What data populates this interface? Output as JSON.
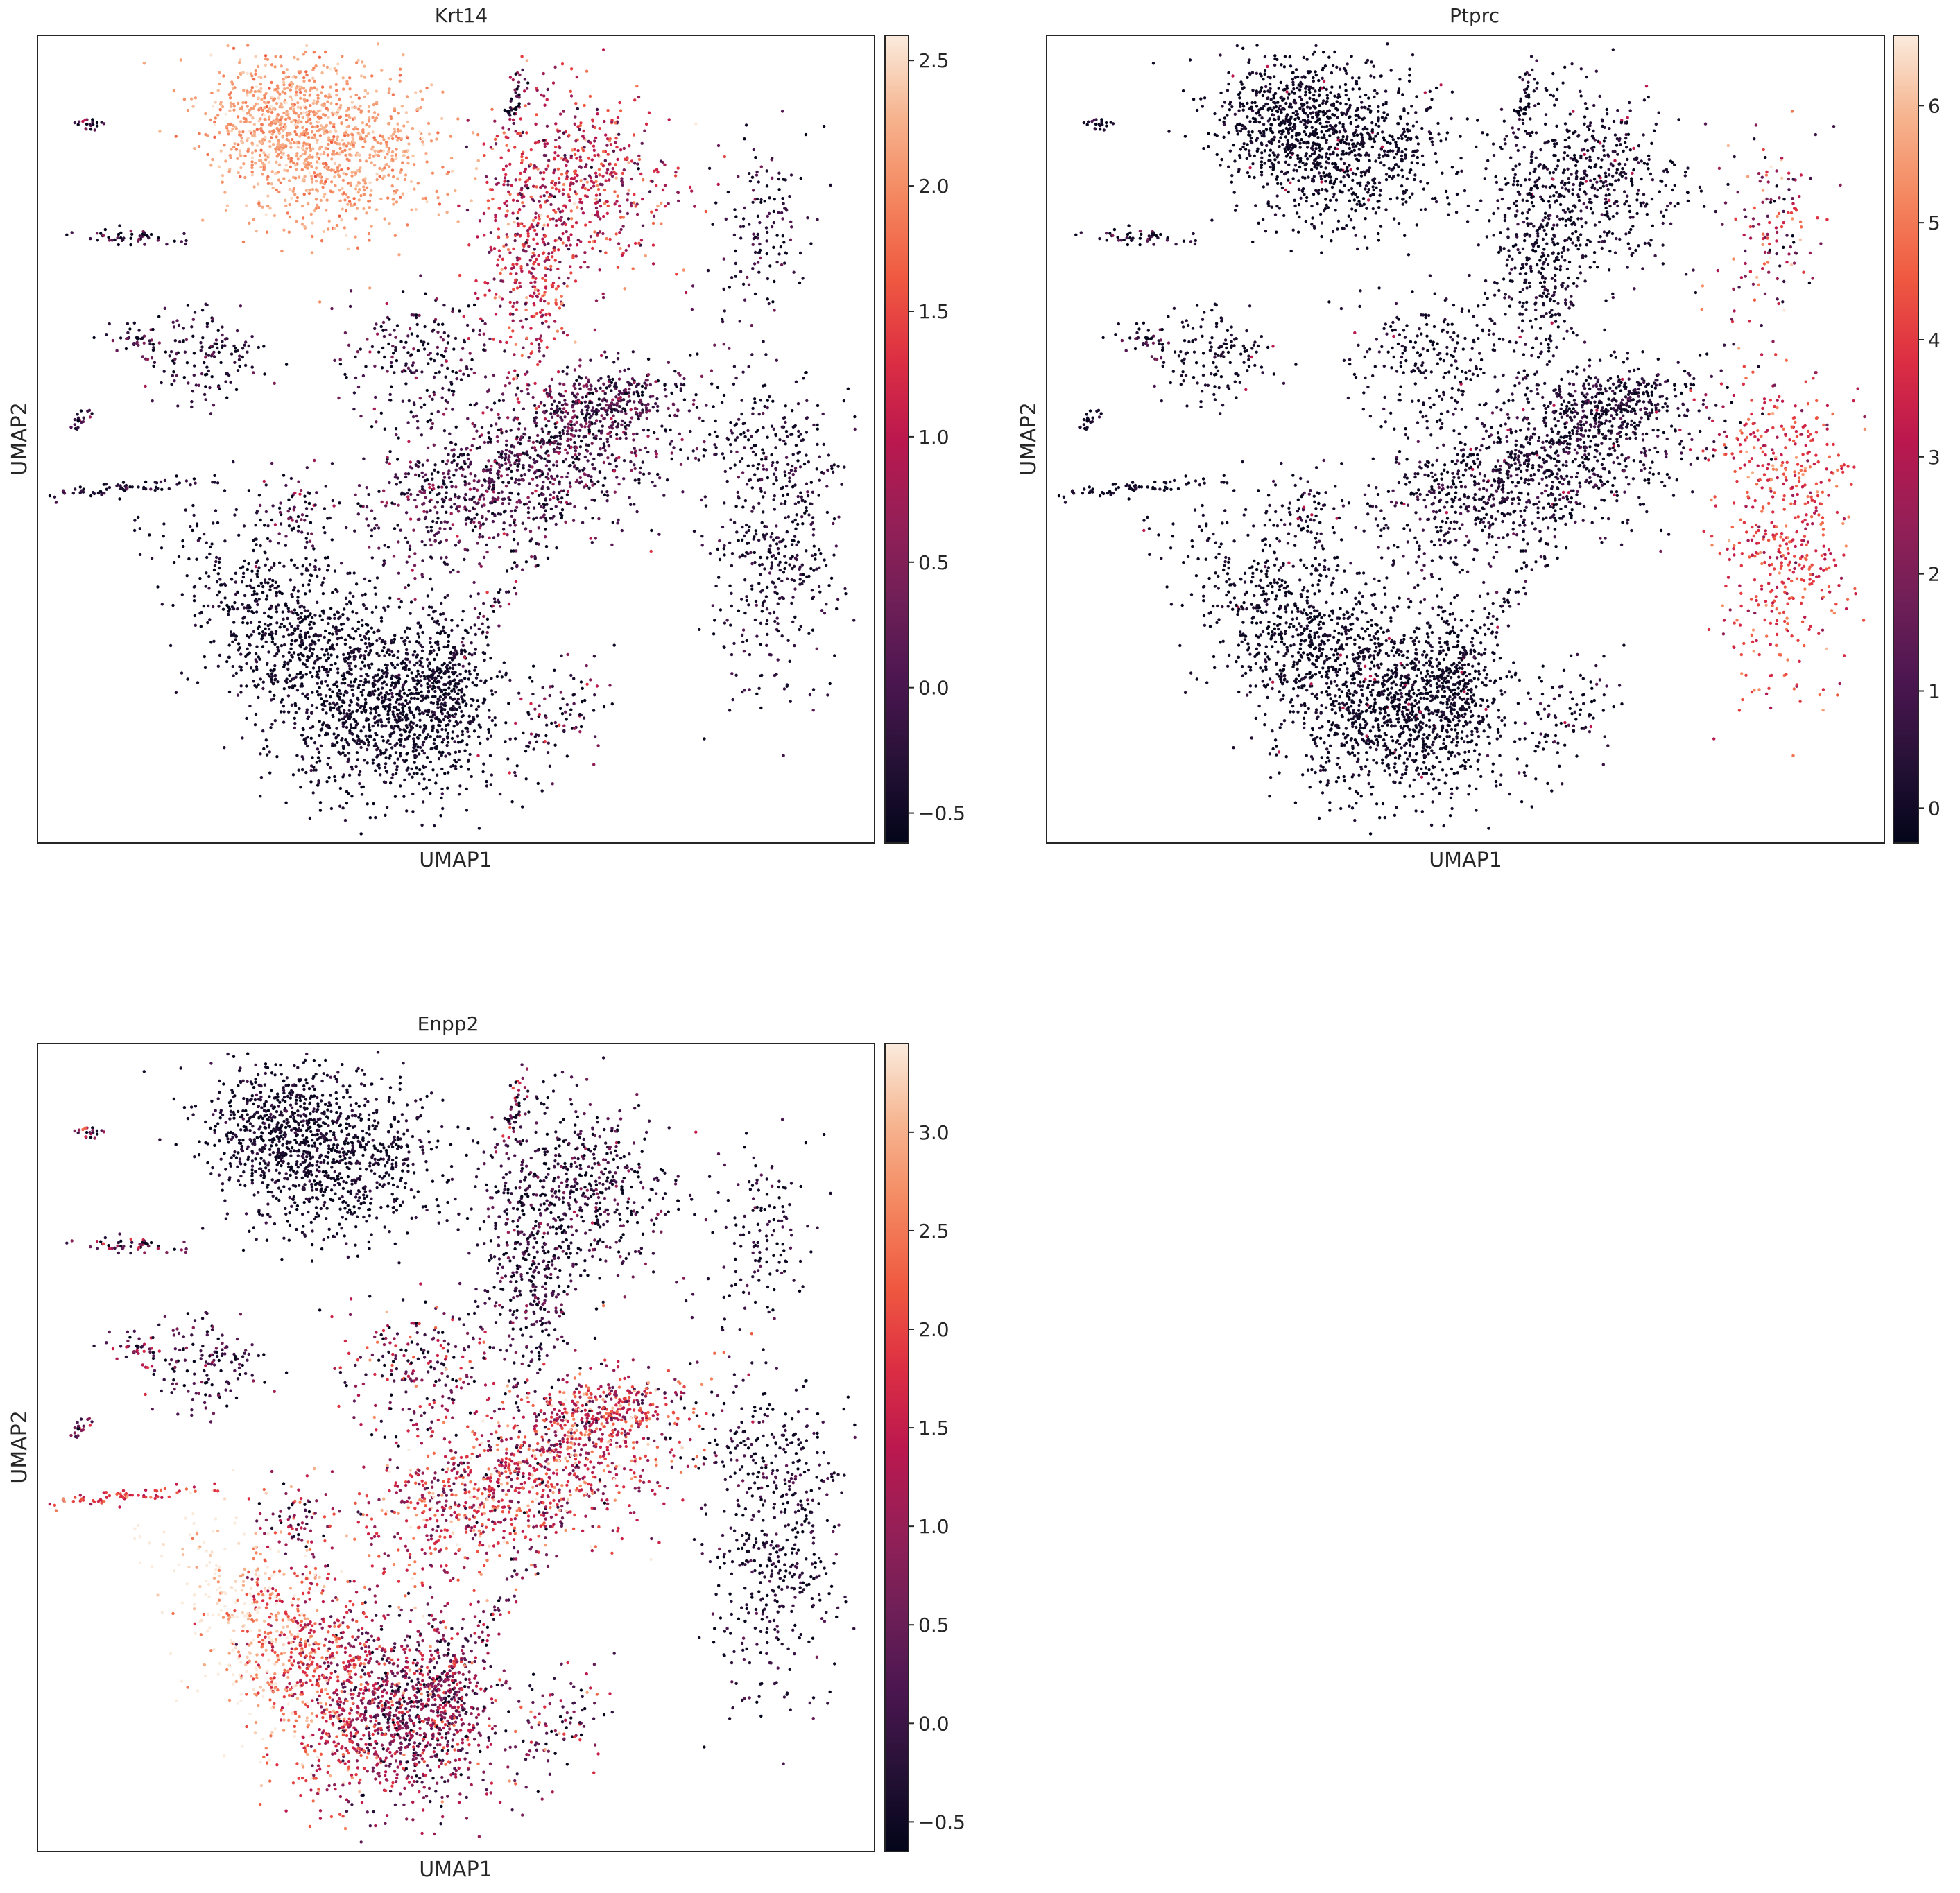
{
  "chart_data": [
    {
      "type": "scatter",
      "title": "Krt14",
      "xlabel": "UMAP1",
      "ylabel": "UMAP2",
      "colorbar": {
        "colormap": "rocket",
        "vmin": -0.62,
        "vmax": 2.6,
        "ticks": [
          -0.5,
          0.0,
          0.5,
          1.0,
          1.5,
          2.0,
          2.5
        ],
        "tick_labels": [
          "−0.5",
          "0.0",
          "0.5",
          "1.0",
          "1.5",
          "2.0",
          "2.5"
        ]
      },
      "high_expression_clusters": [
        "top-left epithelial cluster",
        "upper-central cluster (moderate)"
      ]
    },
    {
      "type": "scatter",
      "title": "Ptprc",
      "xlabel": "UMAP1",
      "ylabel": "UMAP2",
      "colorbar": {
        "colormap": "rocket",
        "vmin": -0.3,
        "vmax": 6.6,
        "ticks": [
          0,
          1,
          2,
          3,
          4,
          5,
          6
        ],
        "tick_labels": [
          "0",
          "1",
          "2",
          "3",
          "4",
          "5",
          "6"
        ]
      },
      "high_expression_clusters": [
        "right immune cluster",
        "right-side small streaks"
      ]
    },
    {
      "type": "scatter",
      "title": "Enpp2",
      "xlabel": "UMAP1",
      "ylabel": "UMAP2",
      "colorbar": {
        "colormap": "rocket",
        "vmin": -0.65,
        "vmax": 3.45,
        "ticks": [
          -0.5,
          0.0,
          0.5,
          1.0,
          1.5,
          2.0,
          2.5,
          3.0
        ],
        "tick_labels": [
          "−0.5",
          "0.0",
          "0.5",
          "1.0",
          "1.5",
          "2.0",
          "2.5",
          "3.0"
        ]
      },
      "high_expression_clusters": [
        "bottom-left cluster",
        "central band",
        "left small streak"
      ]
    }
  ]
}
